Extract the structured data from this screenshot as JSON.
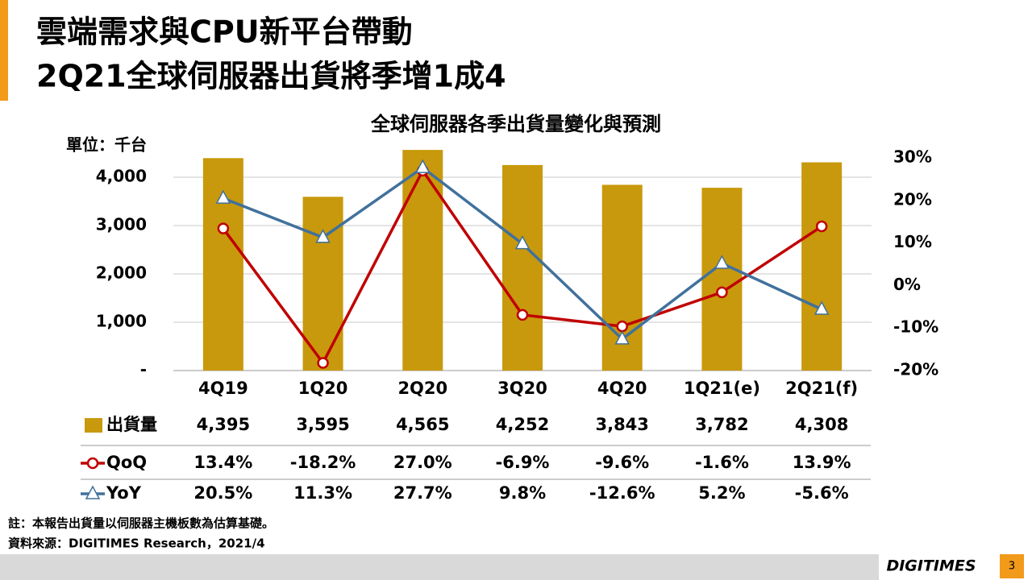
{
  "header": {
    "title_lines": [
      "雲端需求與CPU新平台帶動",
      "2Q21全球伺服器出貨將季增1成4"
    ]
  },
  "chart_data": {
    "type": "combo",
    "title": "全球伺服器各季出貨量變化與預測",
    "unit_label": "單位：千台",
    "categories": [
      "4Q19",
      "1Q20",
      "2Q20",
      "3Q20",
      "4Q20",
      "1Q21(e)",
      "2Q21(f)"
    ],
    "series": [
      {
        "name": "出貨量",
        "type": "bar",
        "color": "#c8990c",
        "values": [
          4395,
          3595,
          4565,
          4252,
          3843,
          3782,
          4308
        ],
        "value_labels": [
          "4,395",
          "3,595",
          "4,565",
          "4,252",
          "3,843",
          "3,782",
          "4,308"
        ]
      },
      {
        "name": "QoQ",
        "type": "line",
        "axis": "y2",
        "marker": "circle",
        "color": "#c00000",
        "values": [
          13.4,
          -18.2,
          27.0,
          -6.9,
          -9.6,
          -1.6,
          13.9
        ],
        "value_labels": [
          "13.4%",
          "-18.2%",
          "27.0%",
          "-6.9%",
          "-9.6%",
          "-1.6%",
          "13.9%"
        ]
      },
      {
        "name": "YoY",
        "type": "line",
        "axis": "y2",
        "marker": "triangle",
        "color": "#41719c",
        "values": [
          20.5,
          11.3,
          27.7,
          9.8,
          -12.6,
          5.2,
          -5.6
        ],
        "value_labels": [
          "20.5%",
          "11.3%",
          "27.7%",
          "9.8%",
          "-12.6%",
          "5.2%",
          "-5.6%"
        ]
      }
    ],
    "ylim": [
      0,
      4400
    ],
    "yticks": [
      {
        "value": 0,
        "label": "-"
      },
      {
        "value": 1000,
        "label": "1,000"
      },
      {
        "value": 2000,
        "label": "2,000"
      },
      {
        "value": 3000,
        "label": "3,000"
      },
      {
        "value": 4000,
        "label": "4,000"
      }
    ],
    "y2lim": [
      -20,
      30
    ],
    "y2ticks": [
      {
        "value": -20,
        "label": "-20%"
      },
      {
        "value": -10,
        "label": "-10%"
      },
      {
        "value": 0,
        "label": "0%"
      },
      {
        "value": 10,
        "label": "10%"
      },
      {
        "value": 20,
        "label": "20%"
      },
      {
        "value": 30,
        "label": "30%"
      }
    ],
    "grid": true
  },
  "footnotes": [
    "註：本報告出貨量以伺服器主機板數為估算基礎。",
    "資料來源：DIGITIMES Research，2021/4"
  ],
  "footer": {
    "logo": "DIGITIMES",
    "page": "3"
  }
}
